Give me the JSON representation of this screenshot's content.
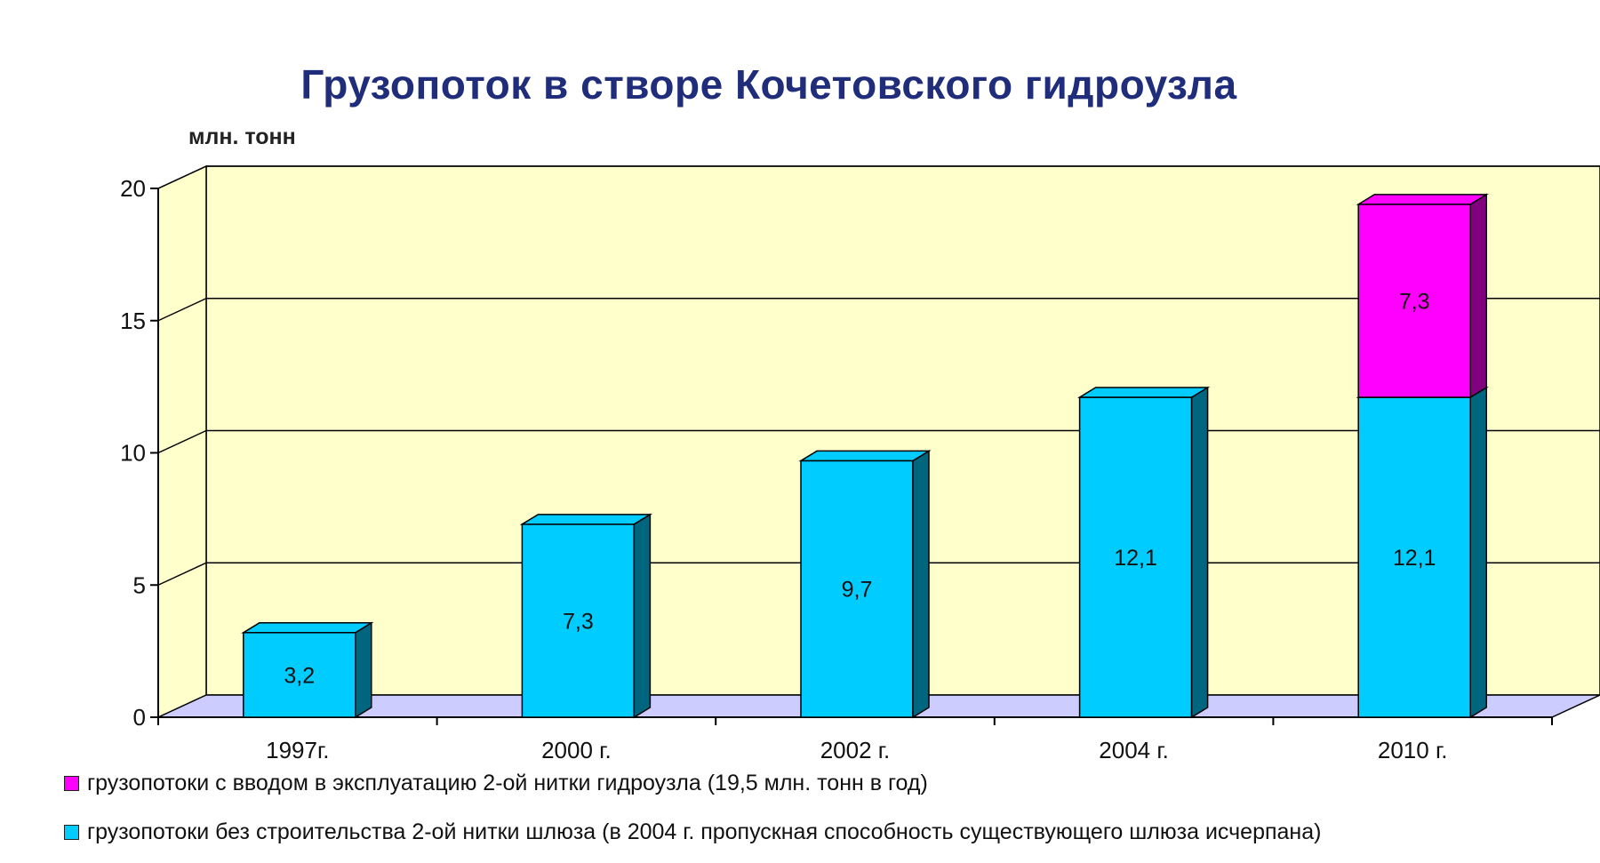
{
  "chart_data": {
    "type": "bar",
    "stacked": true,
    "three_d": true,
    "title": "Грузопоток в створе Кочетовского гидроузла",
    "ylabel": "млн. тонн",
    "xlabel": "",
    "categories": [
      "1997г.",
      "2000 г.",
      "2002 г.",
      "2004 г.",
      "2010 г."
    ],
    "ylim": [
      0,
      20
    ],
    "yticks": [
      0,
      5,
      10,
      15,
      20
    ],
    "ytick_labels": [
      "0",
      "5",
      "10",
      "15",
      "20"
    ],
    "grid": true,
    "legend_position": "bottom",
    "series": [
      {
        "name": "грузопотоки без строительства 2-ой нитки шлюза (в 2004 г. пропускная способность существующего шлюза исчерпана)",
        "color": "#00ccff",
        "side_color": "#006680",
        "values": [
          3.2,
          7.3,
          9.7,
          12.1,
          12.1
        ],
        "labels": [
          "3,2",
          "7,3",
          "9,7",
          "12,1",
          "12,1"
        ]
      },
      {
        "name": "грузопотоки с вводом в эксплуатацию 2-ой нитки гидроузла (19,5 млн. тонн в год)",
        "color": "#ff00ff",
        "side_color": "#800080",
        "values": [
          0,
          0,
          0,
          0,
          7.3
        ],
        "labels": [
          "",
          "",
          "",
          "",
          "7,3"
        ]
      }
    ],
    "colors": {
      "wall": "#ffffcc",
      "floor": "#ccccff",
      "grid": "#000000"
    }
  }
}
